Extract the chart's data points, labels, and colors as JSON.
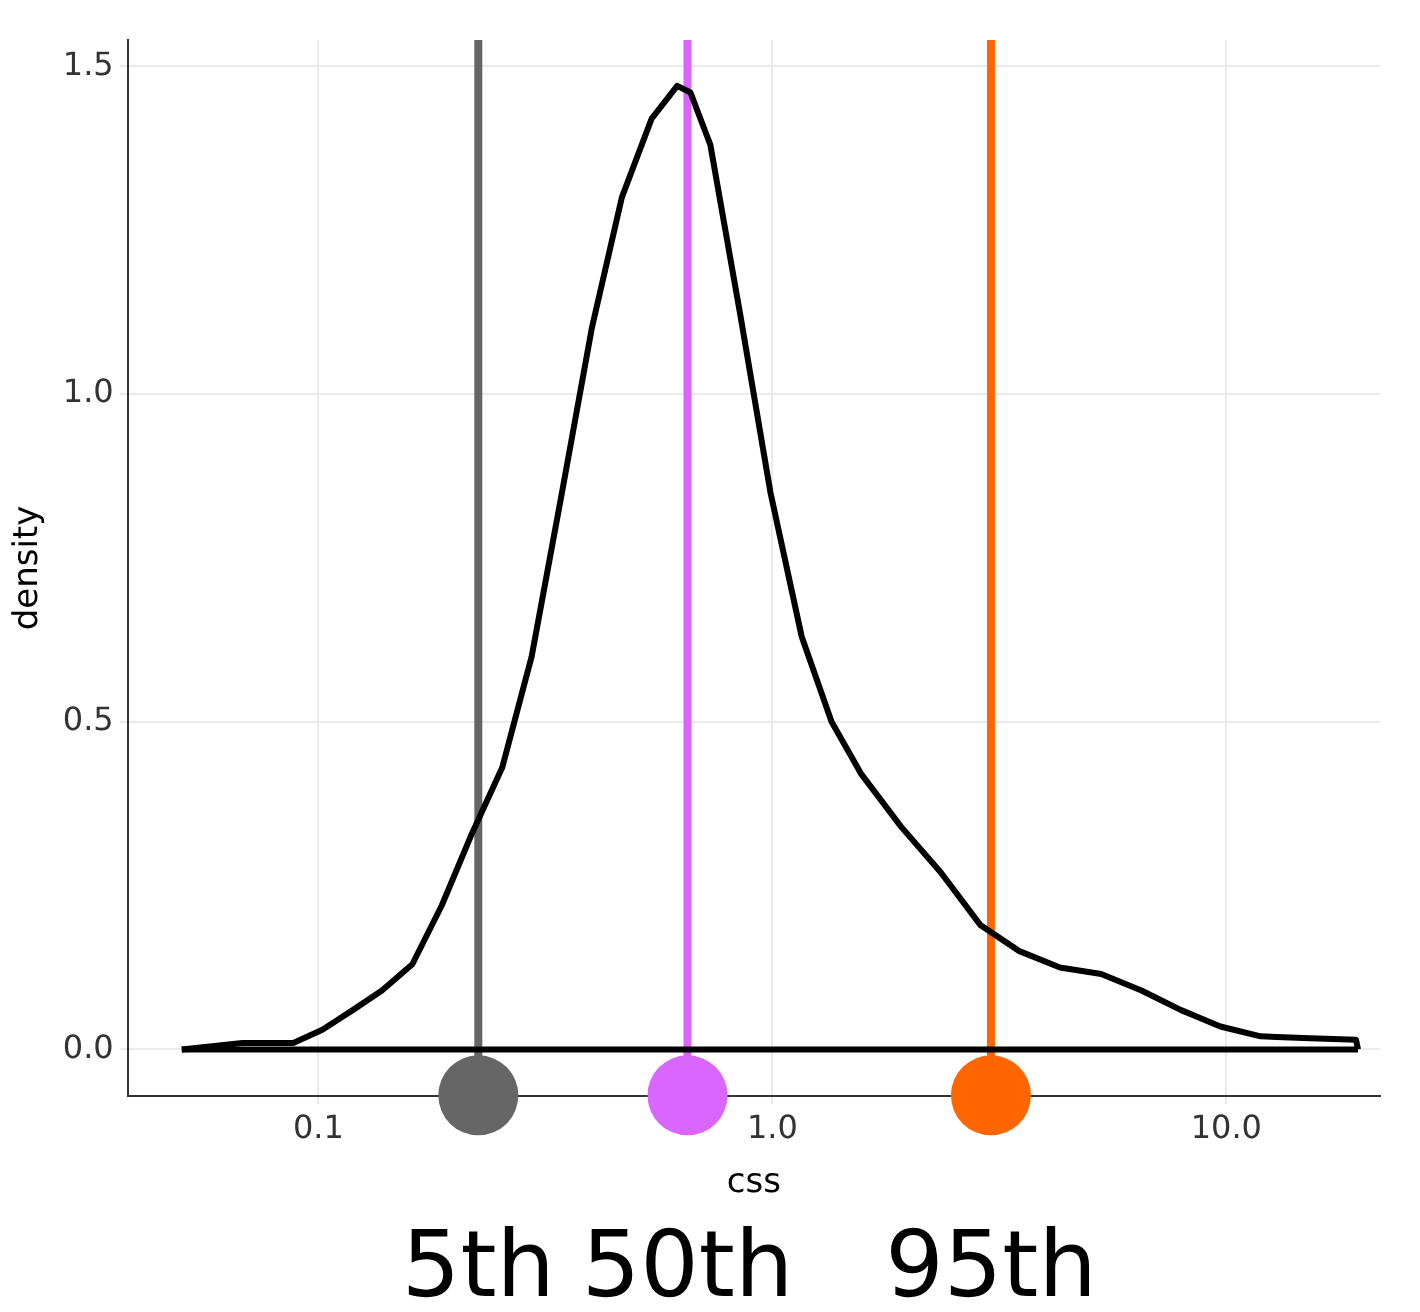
{
  "chart_data": {
    "type": "line",
    "xlabel": "css",
    "ylabel": "density",
    "log": "x",
    "xlim": [
      0.038,
      21.8
    ],
    "ylim": [
      -0.071,
      1.54
    ],
    "xticks": [
      {
        "value": 0.1,
        "label": "0.1"
      },
      {
        "value": 1,
        "label": "1.0"
      },
      {
        "value": 10,
        "label": "10.0"
      }
    ],
    "yticks": [
      {
        "value": 0,
        "label": "0.0"
      },
      {
        "value": 0.5,
        "label": "0.5"
      },
      {
        "value": 1,
        "label": "1.0"
      },
      {
        "value": 1.5,
        "label": "1.5"
      }
    ],
    "grid": true,
    "legend": false,
    "marker": "none",
    "line_style": "solid",
    "series": [
      {
        "color": "#000000",
        "x": [
          0.05,
          0.068,
          0.088,
          0.102,
          0.119,
          0.138,
          0.161,
          0.187,
          0.218,
          0.254,
          0.295,
          0.344,
          0.4,
          0.466,
          0.542,
          0.617,
          0.66,
          0.73,
          0.85,
          0.99,
          1.16,
          1.35,
          1.57,
          1.92,
          2.35,
          2.87,
          3.5,
          4.3,
          5.3,
          6.5,
          7.95,
          9.7,
          11.9,
          15.3,
          19.3,
          19.5
        ],
        "values": [
          0,
          0.01,
          0.01,
          0.03,
          0.06,
          0.09,
          0.13,
          0.22,
          0.33,
          0.43,
          0.6,
          0.85,
          1.1,
          1.3,
          1.42,
          1.47,
          1.46,
          1.38,
          1.12,
          0.85,
          0.63,
          0.5,
          0.42,
          0.34,
          0.27,
          0.19,
          0.15,
          0.125,
          0.115,
          0.09,
          0.06,
          0.035,
          0.02,
          0.017,
          0.015,
          0
        ]
      },
      {
        "type": "line",
        "color": "#000000",
        "x": [
          0.05,
          19.5
        ],
        "values": [
          0,
          0
        ]
      },
      {
        "type": "scatter",
        "marker": "circle",
        "x": [
          0.225,
          0.65,
          3.03
        ],
        "values": [
          -0.07,
          -0.07,
          -0.07
        ],
        "colors": [
          "#666666",
          "#d966ff",
          "#ff6600"
        ]
      }
    ],
    "ref_lines": [
      {
        "axis": "x",
        "value": 0.225,
        "color": "#666666"
      },
      {
        "axis": "x",
        "value": 0.65,
        "color": "#d966ff"
      },
      {
        "axis": "x",
        "value": 3.03,
        "color": "#ff6600"
      }
    ],
    "annotations": [
      "5th",
      "50th",
      "95th"
    ]
  }
}
